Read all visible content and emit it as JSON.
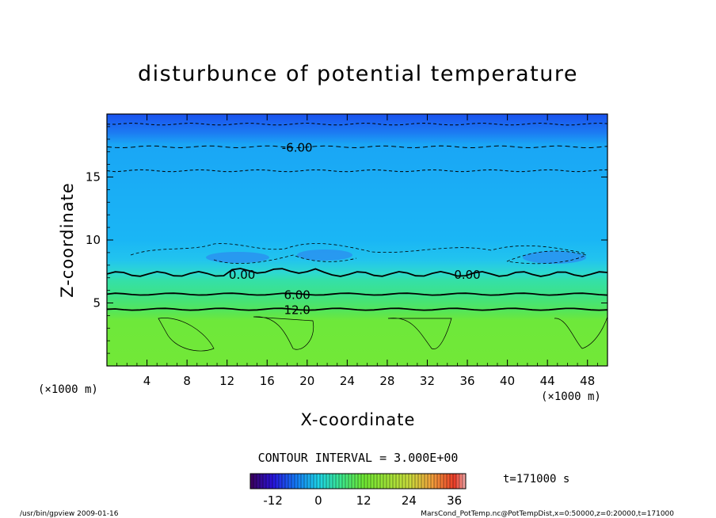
{
  "chart_data": {
    "type": "heatmap",
    "title": "disturbunce of potential temperature",
    "xlabel": "X-coordinate",
    "ylabel": "Z-coordinate",
    "x_unit": "(×1000 m)",
    "xlim": [
      0,
      50
    ],
    "ylim": [
      0,
      20
    ],
    "x_ticks": [
      4,
      8,
      12,
      16,
      20,
      24,
      28,
      32,
      36,
      40,
      44,
      48
    ],
    "y_ticks": [
      5,
      10,
      15
    ],
    "contour_interval_text": "CONTOUR INTERVAL = 3.000E+00",
    "contour_levels": [
      {
        "label": "-6.00",
        "z": 17.4,
        "style": "dashed",
        "labeled": true
      },
      {
        "label": "",
        "z": 15.5,
        "style": "dashed",
        "labeled": false
      },
      {
        "label": "",
        "z": 19.2,
        "style": "dashed",
        "labeled": false
      },
      {
        "label": "0.00",
        "z": 7.3,
        "style": "solid",
        "labeled": true
      },
      {
        "label": "6.00",
        "z": 5.7,
        "style": "solid",
        "labeled": true
      },
      {
        "label": "12.0",
        "z": 4.5,
        "style": "solid",
        "labeled": true
      }
    ],
    "colorbar": {
      "ticks": [
        -12,
        0,
        12,
        24,
        36
      ],
      "range": [
        -18,
        39
      ]
    },
    "time_label": "t=171000 s"
  },
  "footer": {
    "left": "/usr/bin/gpview    2009-01-16",
    "right": "MarsCond_PotTemp.nc@PotTempDist,x=0:50000,z=0:20000,t=171000"
  },
  "colors": {
    "top_band": "#1f5af0",
    "upper": "#1aaef5",
    "mid": "#2ad6dd",
    "green_band": "#3fe08a",
    "lower": "#6ee83a"
  }
}
